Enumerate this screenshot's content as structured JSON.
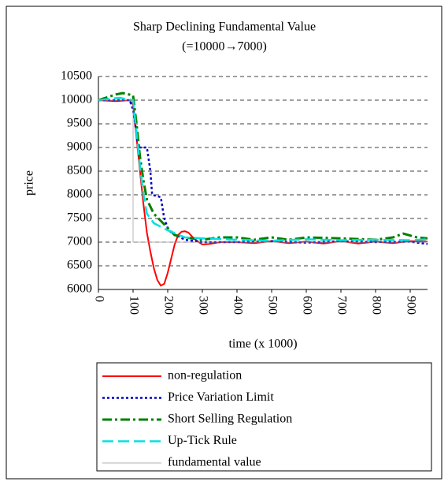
{
  "chart_data": {
    "type": "line",
    "title": "Sharp Declining Fundamental Value",
    "subtitle": "(=10000→7000)",
    "x_label": "time (x 1000)",
    "y_label": "price",
    "xlim": [
      0,
      950
    ],
    "xticks": [
      0,
      100,
      200,
      300,
      400,
      500,
      600,
      700,
      800,
      900
    ],
    "ylim": [
      6000,
      10500
    ],
    "yticks": [
      6000,
      6500,
      7000,
      7500,
      8000,
      8500,
      9000,
      9500,
      10000,
      10500
    ],
    "grid": true,
    "series": [
      {
        "name": "non-regulation",
        "color": "#ff0000",
        "style": "solid",
        "x": [
          0,
          50,
          90,
          100,
          110,
          120,
          130,
          140,
          150,
          160,
          170,
          180,
          190,
          200,
          210,
          220,
          230,
          240,
          250,
          260,
          270,
          280,
          300,
          320,
          350,
          400,
          450,
          500,
          550,
          600,
          650,
          700,
          750,
          800,
          850,
          900,
          950
        ],
        "values": [
          10000,
          9980,
          10000,
          9900,
          9200,
          8500,
          7800,
          7200,
          6800,
          6450,
          6200,
          6080,
          6120,
          6350,
          6650,
          6950,
          7150,
          7220,
          7230,
          7200,
          7120,
          7050,
          6950,
          6960,
          7000,
          7000,
          6980,
          7020,
          6980,
          7010,
          6970,
          7020,
          6970,
          7010,
          6980,
          7020,
          7010
        ]
      },
      {
        "name": "Price Variation Limit",
        "color": "#0000cc",
        "style": "dotted",
        "x": [
          0,
          90,
          100,
          110,
          115,
          140,
          150,
          155,
          180,
          190,
          200,
          210,
          250,
          300,
          400,
          500,
          600,
          700,
          800,
          900,
          950
        ],
        "values": [
          10000,
          10000,
          9800,
          9300,
          9000,
          9000,
          8500,
          8000,
          7950,
          7500,
          7300,
          7200,
          7050,
          7000,
          7000,
          7020,
          6990,
          7020,
          7000,
          7010,
          6960
        ]
      },
      {
        "name": "Short Selling Regulation",
        "color": "#008000",
        "style": "dashdot",
        "x": [
          0,
          50,
          70,
          100,
          110,
          120,
          130,
          140,
          160,
          180,
          200,
          220,
          250,
          300,
          350,
          400,
          450,
          500,
          550,
          600,
          700,
          800,
          850,
          880,
          920,
          950
        ],
        "values": [
          10000,
          10120,
          10150,
          10100,
          9500,
          8800,
          8300,
          7900,
          7600,
          7450,
          7300,
          7150,
          7100,
          7050,
          7100,
          7100,
          7050,
          7100,
          7050,
          7100,
          7080,
          7050,
          7100,
          7180,
          7100,
          7080
        ]
      },
      {
        "name": "Up-Tick Rule",
        "color": "#00e0e0",
        "style": "dashed",
        "x": [
          0,
          60,
          100,
          110,
          120,
          130,
          140,
          160,
          200,
          250,
          300,
          400,
          500,
          600,
          700,
          800,
          900,
          950
        ],
        "values": [
          10000,
          10050,
          10000,
          9300,
          8600,
          8000,
          7600,
          7400,
          7250,
          7100,
          7080,
          7050,
          7030,
          7060,
          7040,
          7050,
          7040,
          7060
        ]
      },
      {
        "name": "fundamental value",
        "color": "#999999",
        "style": "thin",
        "x": [
          0,
          100,
          100,
          950
        ],
        "values": [
          10000,
          10000,
          7000,
          7000
        ]
      }
    ]
  }
}
